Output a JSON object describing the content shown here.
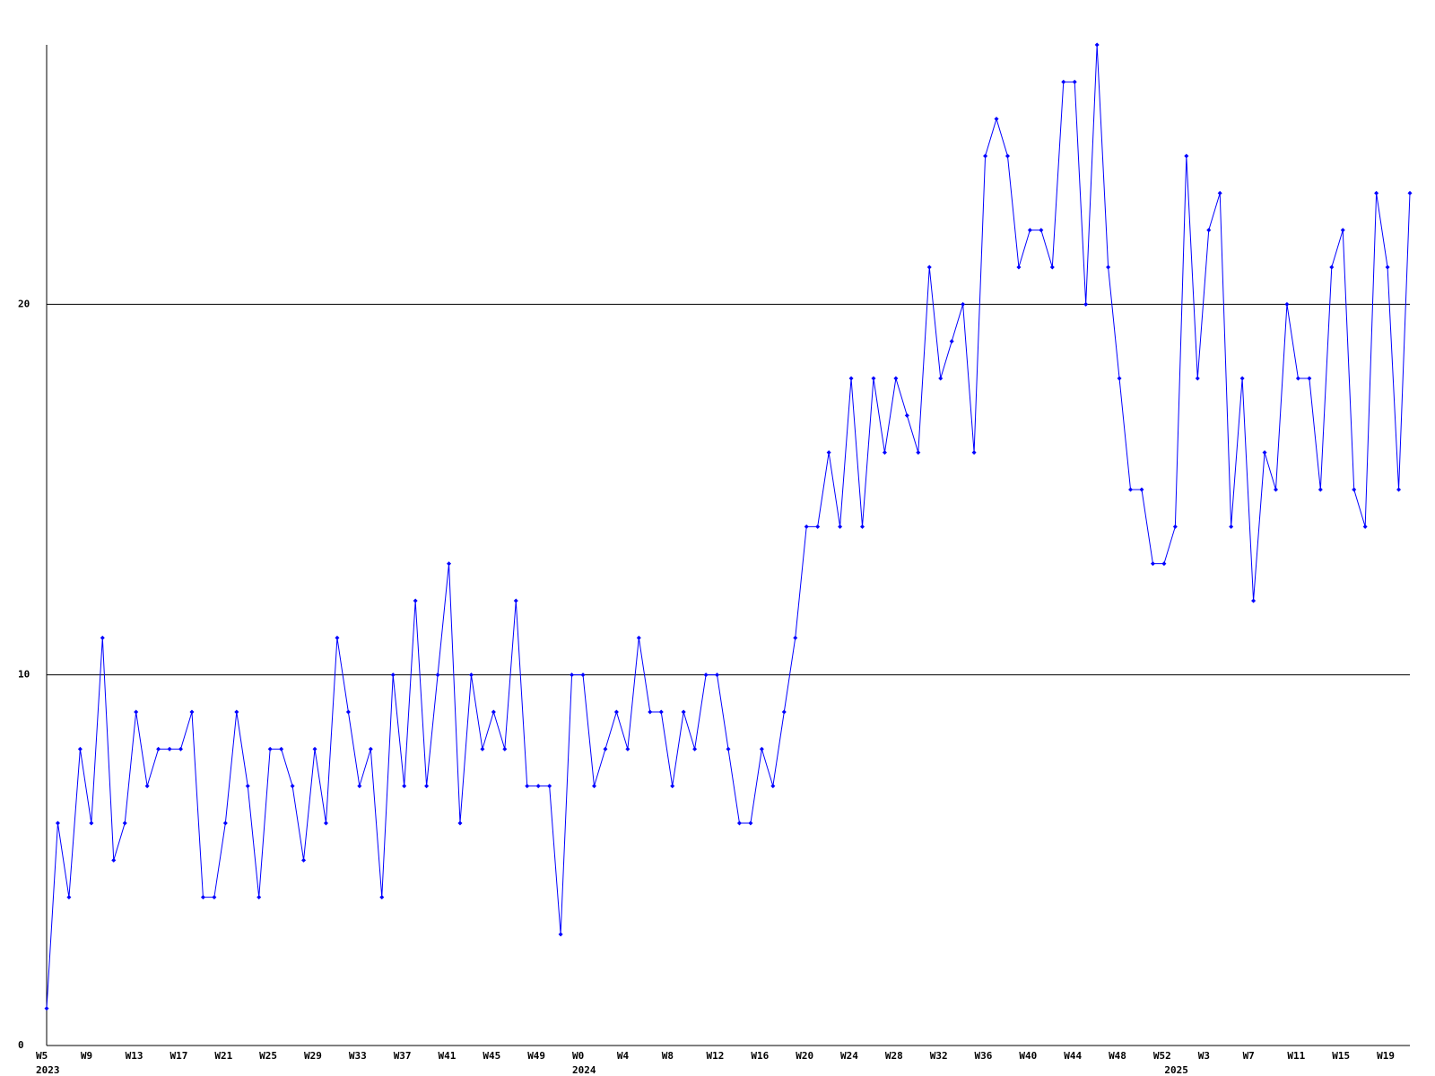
{
  "chart_data": {
    "type": "line",
    "categories": [
      "W5",
      null,
      null,
      null,
      "W9",
      null,
      null,
      null,
      "W13",
      null,
      null,
      null,
      "W17",
      null,
      null,
      null,
      "W21",
      null,
      null,
      null,
      "W25",
      null,
      null,
      null,
      "W29",
      null,
      null,
      null,
      "W33",
      null,
      null,
      null,
      "W37",
      null,
      null,
      null,
      "W41",
      null,
      null,
      null,
      "W45",
      null,
      null,
      null,
      "W49",
      null,
      null,
      null,
      "W0",
      null,
      null,
      null,
      "W4",
      null,
      null,
      null,
      "W8",
      null,
      null,
      null,
      "W12",
      null,
      null,
      null,
      "W16",
      null,
      null,
      null,
      "W20",
      null,
      null,
      null,
      "W24",
      null,
      null,
      null,
      "W28",
      null,
      null,
      null,
      "W32",
      null,
      null,
      null,
      "W36",
      null,
      null,
      null,
      "W40",
      null,
      null,
      null,
      "W44",
      null,
      null,
      null,
      "W48",
      null,
      null,
      null,
      "W52",
      null,
      null,
      null,
      "W3",
      null,
      null,
      null,
      "W7",
      null,
      null,
      null,
      "W11",
      null,
      null,
      null,
      "W15",
      null,
      null,
      null,
      "W19",
      null,
      null
    ],
    "years": [
      "2023",
      null,
      null,
      null,
      null,
      null,
      null,
      null,
      null,
      null,
      null,
      null,
      null,
      null,
      null,
      null,
      null,
      null,
      null,
      null,
      null,
      null,
      null,
      null,
      null,
      null,
      null,
      null,
      null,
      null,
      null,
      null,
      null,
      null,
      null,
      null,
      null,
      null,
      null,
      null,
      null,
      null,
      null,
      null,
      null,
      null,
      null,
      null,
      "2024",
      null,
      null,
      null,
      null,
      null,
      null,
      null,
      null,
      null,
      null,
      null,
      null,
      null,
      null,
      null,
      null,
      null,
      null,
      null,
      null,
      null,
      null,
      null,
      null,
      null,
      null,
      null,
      null,
      null,
      null,
      null,
      null,
      null,
      null,
      null,
      null,
      null,
      null,
      null,
      null,
      null,
      null,
      null,
      null,
      null,
      null,
      null,
      null,
      null,
      null,
      null,
      null,
      "2025",
      null,
      null,
      null,
      null,
      null,
      null,
      null,
      null,
      null,
      null,
      null,
      null,
      null,
      null,
      null,
      null,
      null,
      null,
      null,
      null
    ],
    "values": [
      1,
      6,
      4,
      8,
      6,
      11,
      5,
      6,
      9,
      7,
      8,
      8,
      8,
      9,
      4,
      4,
      6,
      9,
      7,
      4,
      8,
      8,
      7,
      5,
      8,
      6,
      11,
      9,
      7,
      8,
      4,
      10,
      7,
      12,
      7,
      10,
      13,
      6,
      10,
      8,
      9,
      8,
      12,
      7,
      7,
      7,
      3,
      10,
      10,
      7,
      8,
      9,
      8,
      11,
      9,
      9,
      7,
      9,
      8,
      10,
      10,
      8,
      6,
      6,
      8,
      7,
      9,
      11,
      14,
      14,
      16,
      14,
      18,
      14,
      18,
      16,
      18,
      17,
      16,
      21,
      18,
      19,
      20,
      16,
      24,
      25,
      24,
      21,
      22,
      22,
      21,
      26,
      26,
      20,
      27,
      21,
      18,
      15,
      15,
      13,
      13,
      14,
      24,
      18,
      22,
      23,
      14,
      18,
      12,
      16,
      15,
      20,
      18,
      18,
      15,
      21,
      22,
      15,
      14,
      23,
      21,
      15,
      23
    ],
    "color": "#0000ff",
    "ylim": [
      0,
      27
    ],
    "yticks": [
      0,
      10,
      20
    ],
    "grid": true
  }
}
